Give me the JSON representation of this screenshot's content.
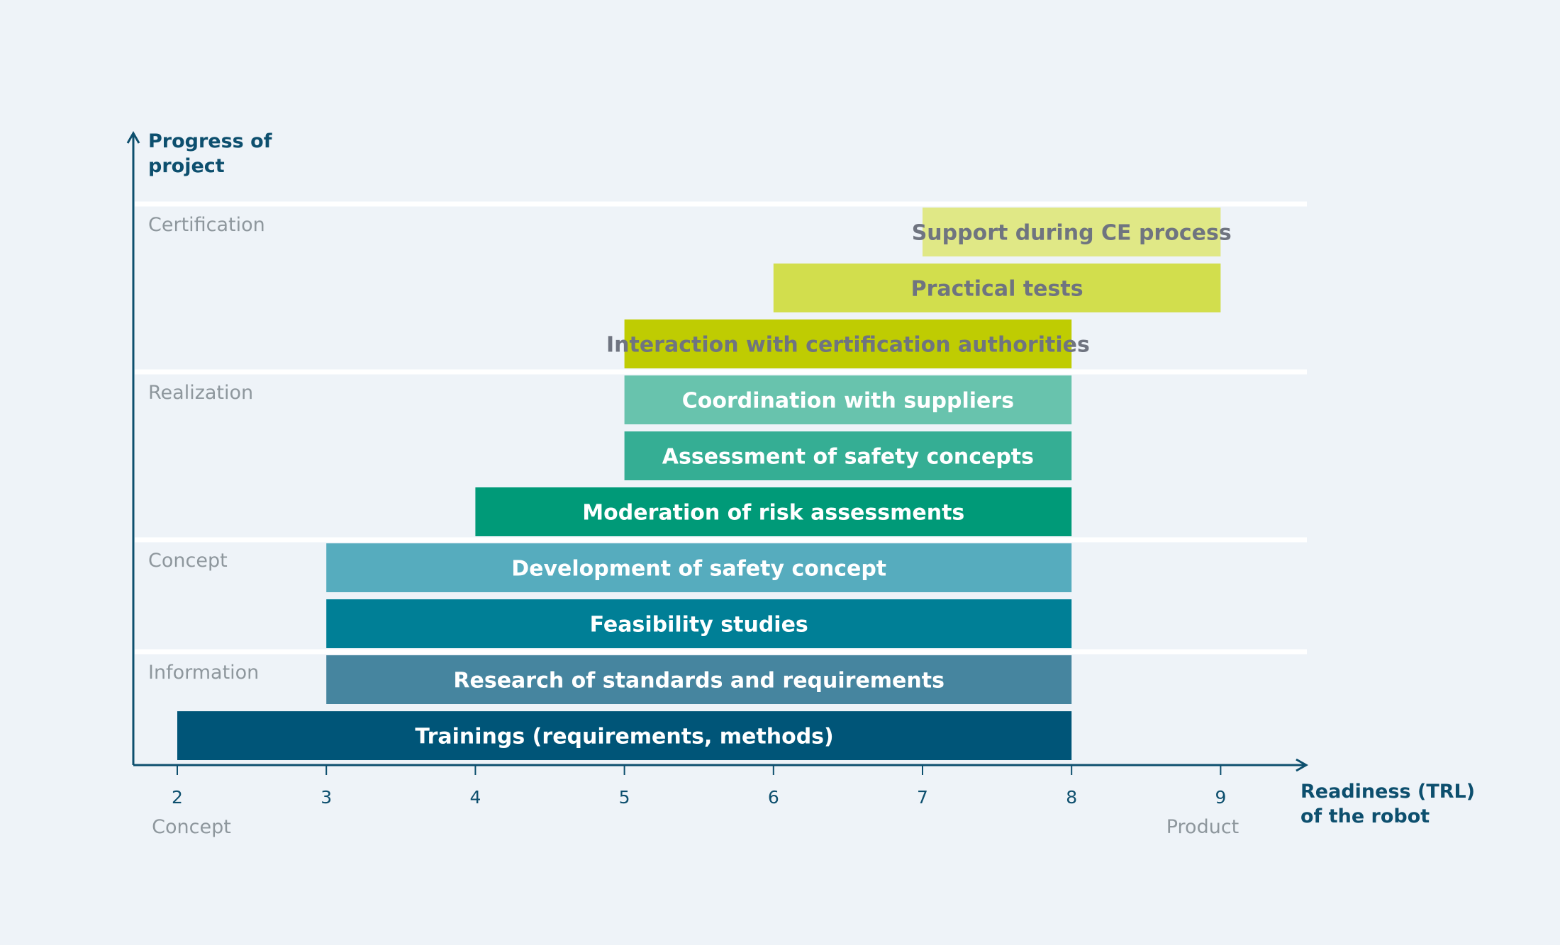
{
  "chart_data": {
    "type": "bar",
    "orientation": "horizontal-range",
    "ylabel": [
      "Progress of",
      "project"
    ],
    "xlabel": [
      "Readiness (TRL)",
      "of the robot"
    ],
    "xlim": [
      1.7,
      9.6
    ],
    "xticks": [
      2,
      3,
      4,
      5,
      6,
      7,
      8,
      9
    ],
    "x_endpoint_labels": {
      "start": "Concept",
      "end": "Product"
    },
    "phases": [
      {
        "name": "Certification",
        "rows": [
          0,
          1,
          2
        ]
      },
      {
        "name": "Realization",
        "rows": [
          3,
          4,
          5
        ]
      },
      {
        "name": "Concept",
        "rows": [
          6,
          7
        ]
      },
      {
        "name": "Information",
        "rows": [
          8,
          9
        ]
      }
    ],
    "bars": [
      {
        "label": "Support during CE process",
        "start": 7,
        "end": 9,
        "color": "#e0e886",
        "text_color": "#6f7480"
      },
      {
        "label": "Practical tests",
        "start": 6,
        "end": 9,
        "color": "#d2de4d",
        "text_color": "#6f7480"
      },
      {
        "label": "Interaction with certification authorities",
        "start": 5,
        "end": 8,
        "color": "#bfcc02",
        "text_color": "#6f7480"
      },
      {
        "label": "Coordination with suppliers",
        "start": 5,
        "end": 8,
        "color": "#68c3ad",
        "text_color": "#ffffff"
      },
      {
        "label": "Assessment of safety concepts",
        "start": 5,
        "end": 8,
        "color": "#35ae94",
        "text_color": "#ffffff"
      },
      {
        "label": "Moderation of risk assessments",
        "start": 4,
        "end": 8,
        "color": "#009a78",
        "text_color": "#ffffff"
      },
      {
        "label": "Development of safety concept",
        "start": 3,
        "end": 8,
        "color": "#56acbe",
        "text_color": "#ffffff"
      },
      {
        "label": "Feasibility studies",
        "start": 3,
        "end": 8,
        "color": "#007f96",
        "text_color": "#ffffff"
      },
      {
        "label": "Research of standards and requirements",
        "start": 3,
        "end": 8,
        "color": "#46859f",
        "text_color": "#ffffff"
      },
      {
        "label": "Trainings (requirements, methods)",
        "start": 2,
        "end": 8,
        "color": "#005578",
        "text_color": "#ffffff"
      }
    ],
    "colors": {
      "axis": "#0d4f6e",
      "background": "#eef3f8",
      "separator": "#ffffff",
      "muted_text": "#8e979d"
    }
  }
}
